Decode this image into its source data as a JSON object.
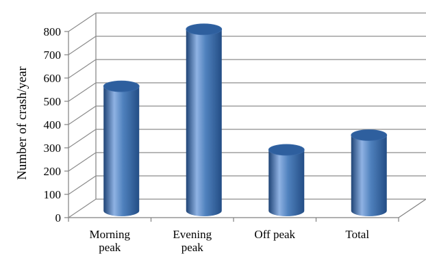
{
  "chart_data": {
    "type": "bar",
    "style": "3d-cylinder",
    "categories": [
      "Morning\npeak",
      "Evening\npeak",
      "Off peak",
      "Total"
    ],
    "values": [
      535,
      780,
      262,
      325
    ],
    "xlabel": "",
    "ylabel": "Number of crash/year",
    "ylim": [
      0,
      800
    ],
    "yticks": [
      0,
      100,
      200,
      300,
      400,
      500,
      600,
      700,
      800
    ],
    "grid": true,
    "legend": "none",
    "colors": {
      "bar_main": "#4f81bd",
      "bar_light": "#8fb2e3",
      "bar_dark": "#1f4476",
      "bar_top": "#2e5f9e",
      "grid": "#8c8c8c"
    }
  }
}
